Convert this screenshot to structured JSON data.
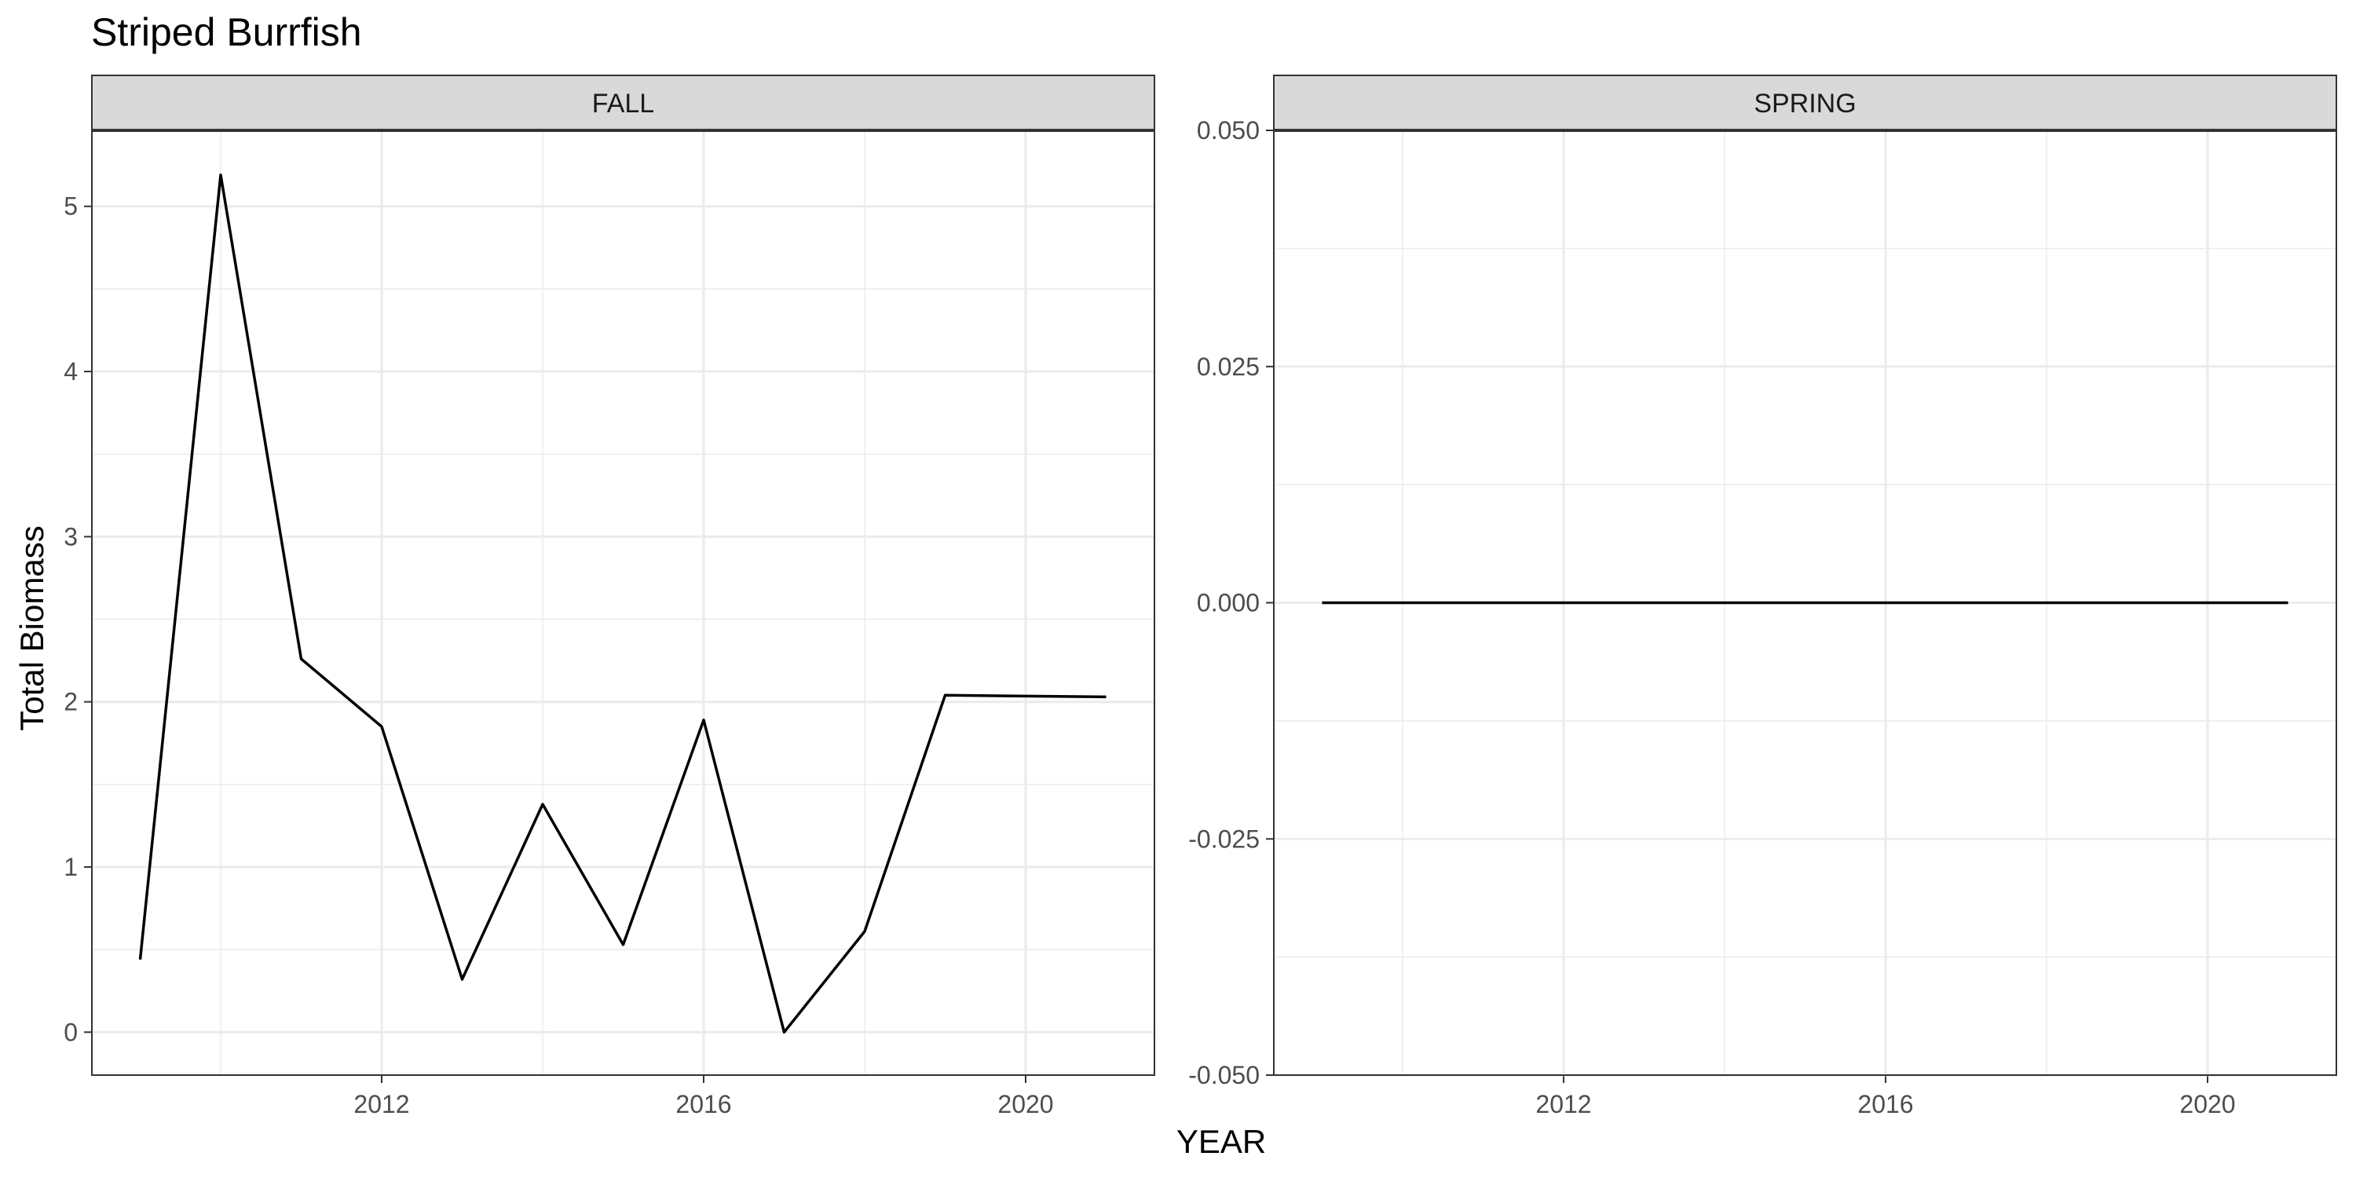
{
  "chart_data": {
    "type": "line",
    "title": "Striped Burrfish",
    "xlabel": "YEAR",
    "ylabel": "Total Biomass",
    "grid": true,
    "legend": "none",
    "line_color": "#000000",
    "strip_fill": "#d9d9d9",
    "grid_color": "#ebebeb",
    "panels": [
      {
        "label": "FALL",
        "xlim": [
          2008.4,
          2021.6
        ],
        "ylim": [
          -0.26,
          5.46
        ],
        "xticks": [
          2012,
          2016,
          2020
        ],
        "yticks": [
          0,
          1,
          2,
          3,
          4,
          5
        ],
        "ytick_labels": [
          "0",
          "1",
          "2",
          "3",
          "4",
          "5"
        ],
        "series": [
          {
            "x": [
              2009,
              2010,
              2011,
              2012,
              2013,
              2014,
              2015,
              2016,
              2017,
              2018,
              2019,
              2020,
              2021
            ],
            "values": [
              0.44,
              5.19,
              2.26,
              1.85,
              0.32,
              1.38,
              0.53,
              1.89,
              0.0,
              0.61,
              2.04,
              2.035,
              2.03
            ]
          }
        ]
      },
      {
        "label": "SPRING",
        "xlim": [
          2008.4,
          2021.6
        ],
        "ylim": [
          -0.05,
          0.05
        ],
        "xticks": [
          2012,
          2016,
          2020
        ],
        "yticks": [
          -0.05,
          -0.025,
          0,
          0.025,
          0.05
        ],
        "ytick_labels": [
          "-0.050",
          "-0.025",
          "0.000",
          "0.025",
          "0.050"
        ],
        "series": [
          {
            "x": [
              2009,
              2010,
              2011,
              2012,
              2013,
              2014,
              2015,
              2016,
              2017,
              2018,
              2019,
              2020,
              2021
            ],
            "values": [
              0,
              0,
              0,
              0,
              0,
              0,
              0,
              0,
              0,
              0,
              0,
              0,
              0
            ]
          }
        ]
      }
    ]
  }
}
